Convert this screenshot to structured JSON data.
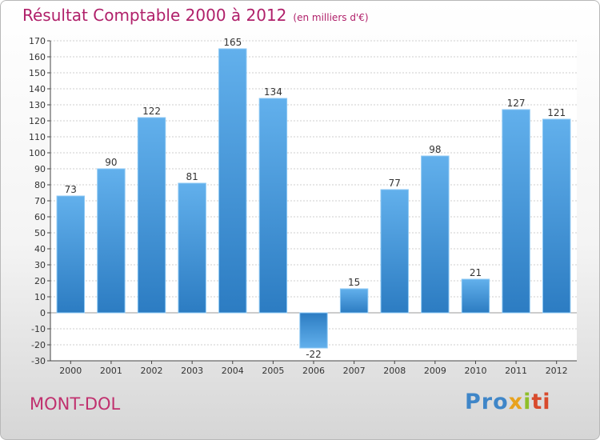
{
  "header": {
    "title": "Résultat Comptable 2000 à 2012",
    "subtitle": "(en milliers d'€)"
  },
  "footer": {
    "commune": "MONT-DOL",
    "logo": [
      "Pro",
      "x",
      "i",
      "ti"
    ]
  },
  "colors": {
    "bar": "#4a9ede",
    "bar_light": "#6cb6ee",
    "bar_dark": "#2a78c0",
    "title": "#b0206a"
  },
  "chart_data": {
    "type": "bar",
    "title": "Résultat Comptable 2000 à 2012",
    "categories": [
      "2000",
      "2001",
      "2002",
      "2003",
      "2004",
      "2005",
      "2006",
      "2007",
      "2008",
      "2009",
      "2010",
      "2011",
      "2012"
    ],
    "values": [
      73,
      90,
      122,
      81,
      165,
      134,
      -22,
      15,
      77,
      98,
      21,
      127,
      121
    ],
    "ylim": [
      -30,
      170
    ],
    "ytick_step": 10,
    "grid": true,
    "data_labels": true
  }
}
